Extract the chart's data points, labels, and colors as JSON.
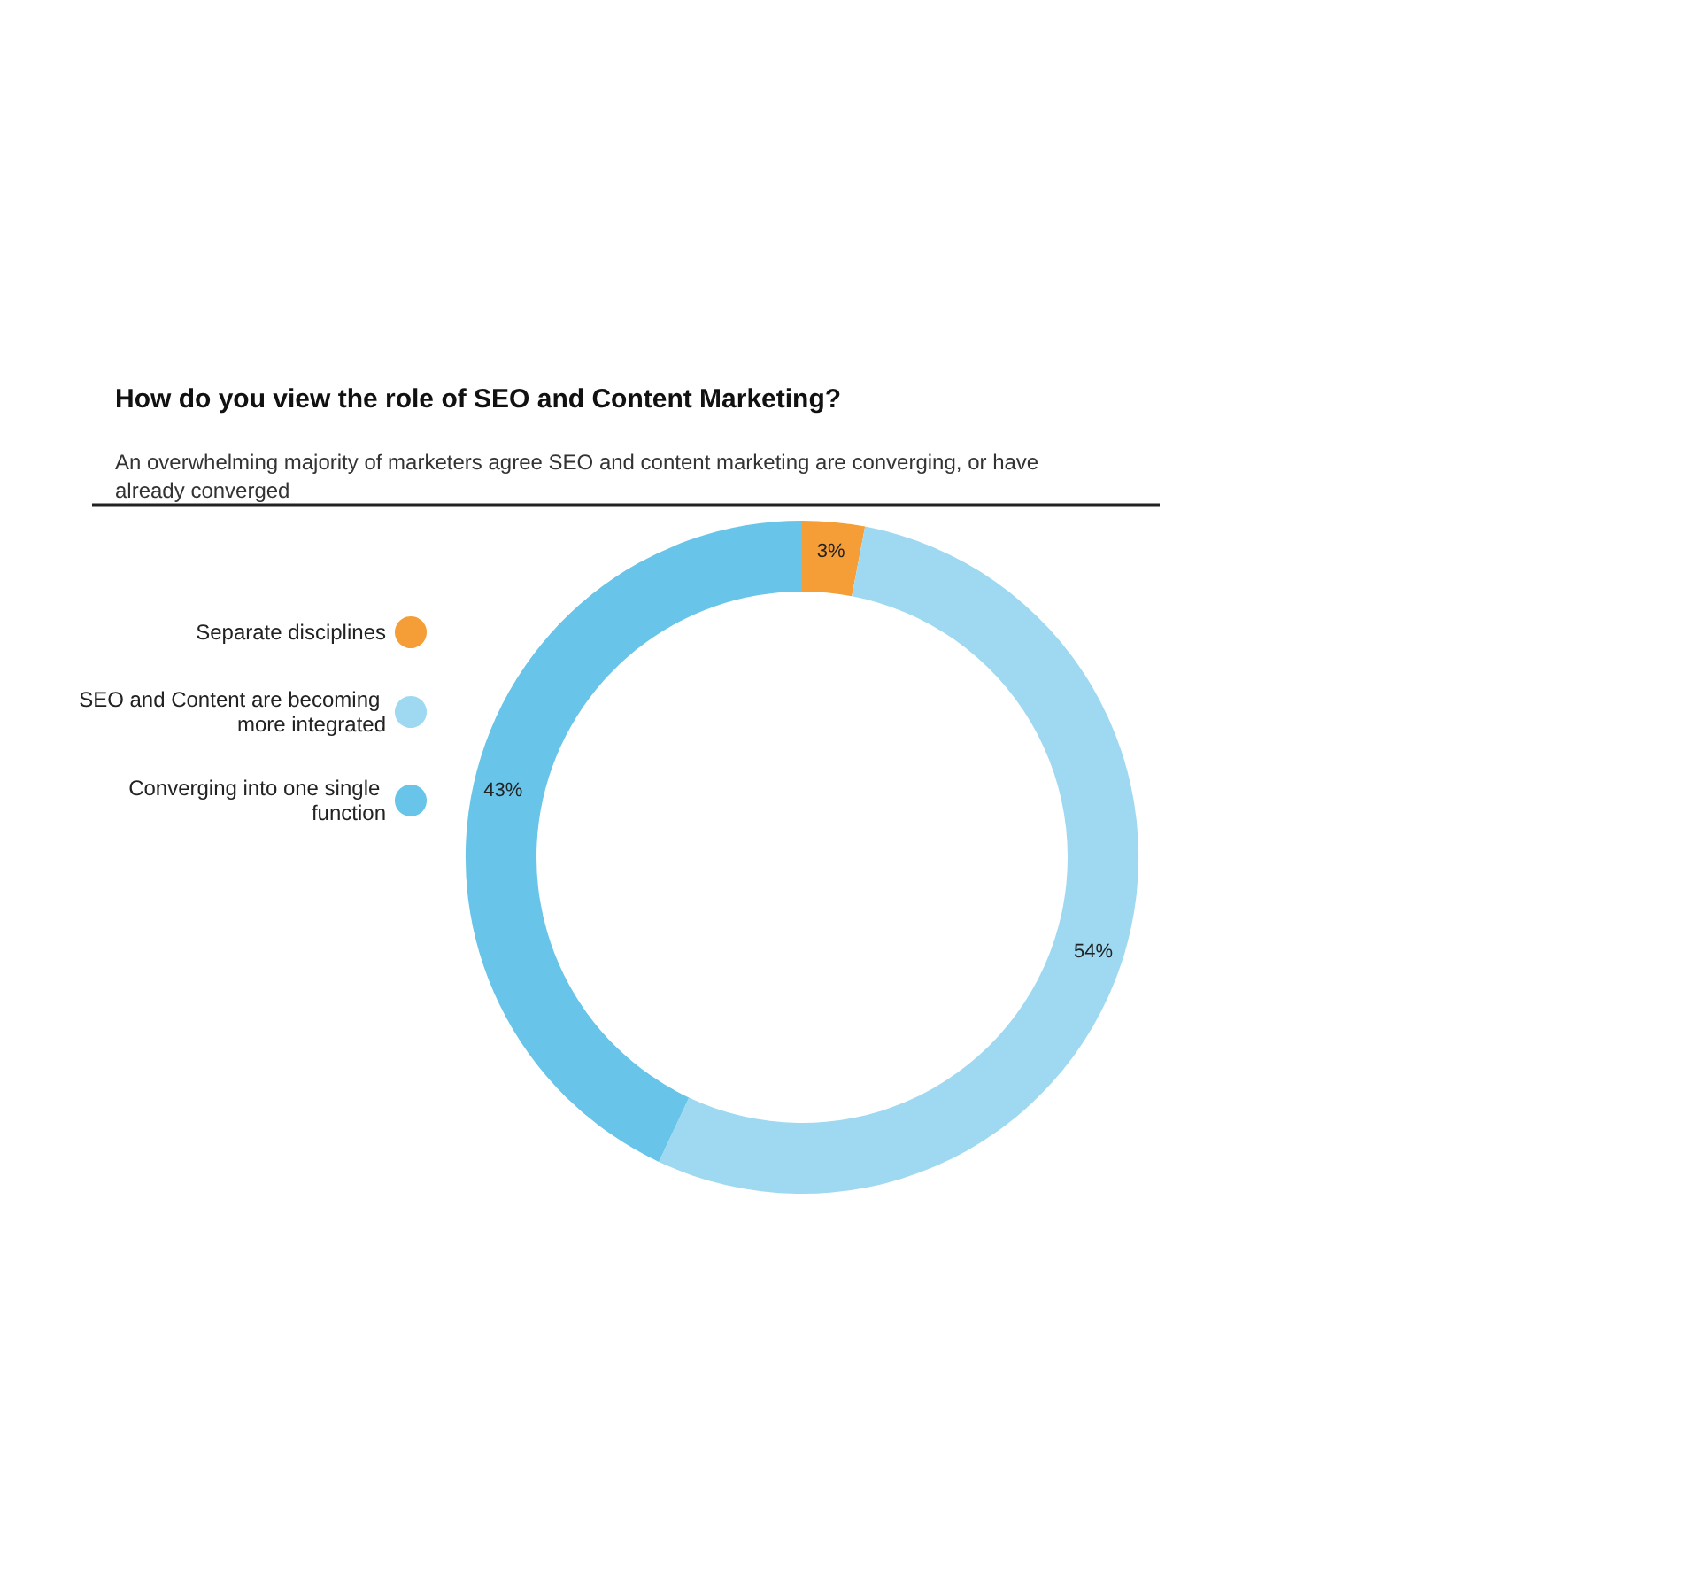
{
  "chart_data": {
    "type": "donut",
    "title": "How do you view the role of SEO and Content Marketing?",
    "subtitle": "An overwhelming majority of marketers agree SEO and content marketing are converging, or have already converged",
    "categories": [
      "Separate disciplines",
      "SEO and Content are becoming more integrated",
      "Converging into one single function"
    ],
    "values": [
      3,
      54,
      43
    ],
    "colors": [
      "#f59d36",
      "#9ed9f1",
      "#68c4e8"
    ],
    "value_labels": [
      "3%",
      "54%",
      "43%"
    ],
    "legend": "left"
  }
}
